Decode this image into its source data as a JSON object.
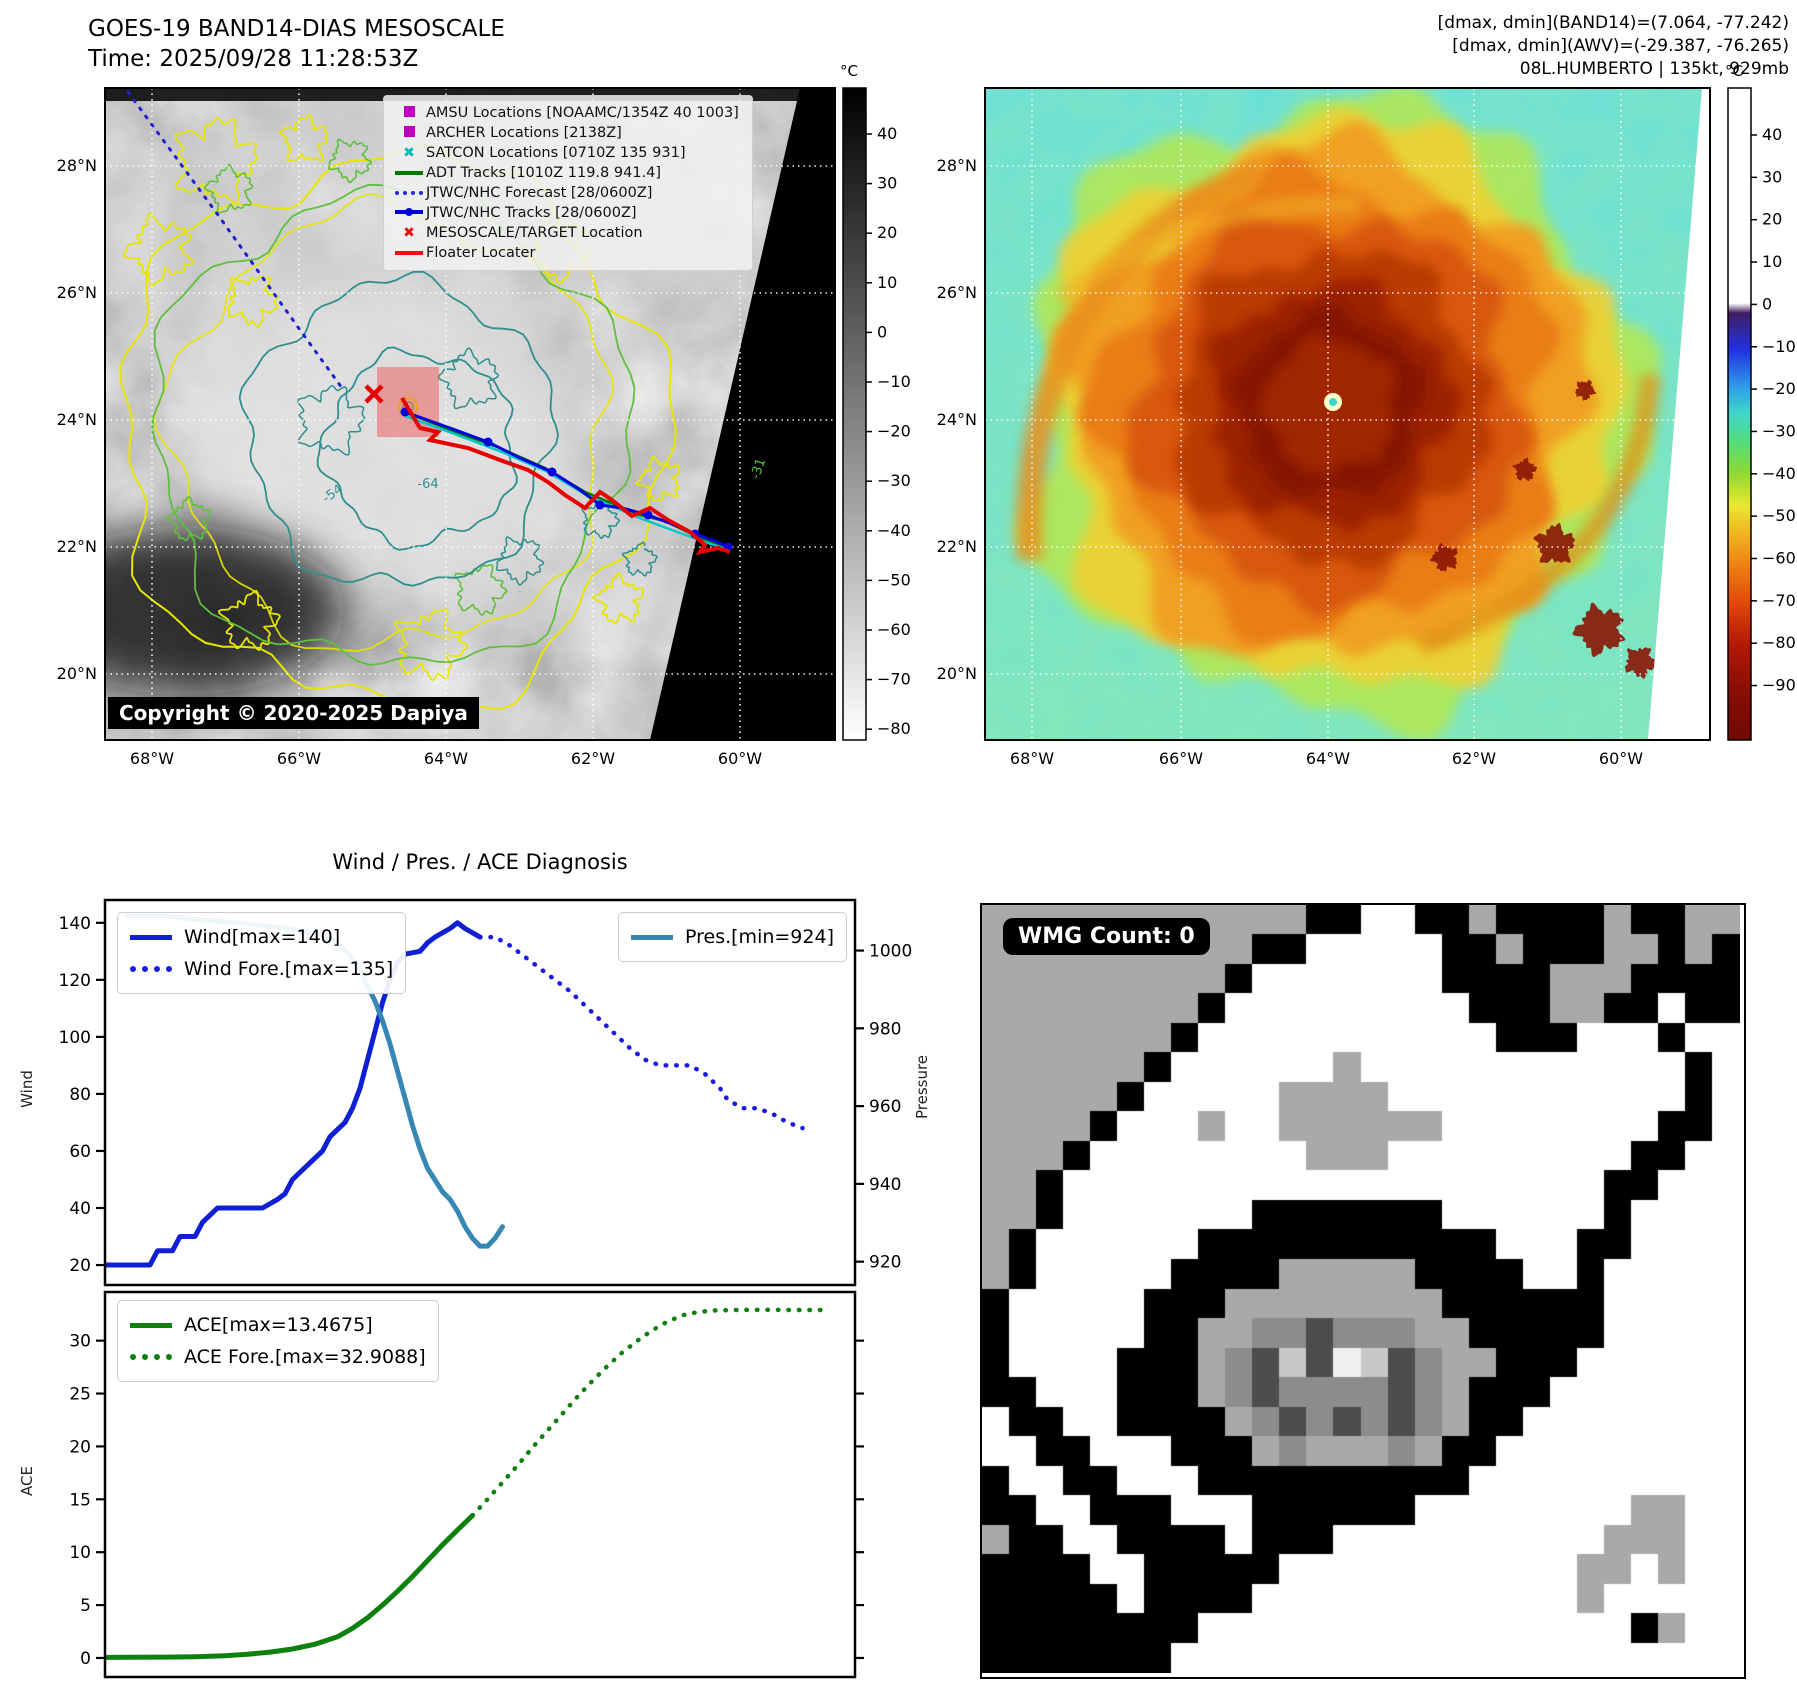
{
  "header": {
    "title_line1": "GOES-19 BAND14-DIAS MESOSCALE",
    "title_line2": "Time: 2025/09/28 11:28:53Z",
    "stats_line1": "[dmax, dmin](BAND14)=(7.064, -77.242)",
    "stats_line2": "[dmax, dmin](AWV)=(-29.387, -76.265)",
    "stats_line3": "08L.HUMBERTO | 135kt, 929mb"
  },
  "band14_map": {
    "lat_labels": [
      "28°N",
      "26°N",
      "24°N",
      "22°N",
      "20°N"
    ],
    "lon_labels": [
      "68°W",
      "66°W",
      "64°W",
      "62°W",
      "60°W"
    ],
    "colorbar": {
      "title": "°C",
      "ticks": [
        40,
        30,
        20,
        10,
        0,
        -10,
        -20,
        -30,
        -40,
        -50,
        -60,
        -70,
        -80
      ]
    },
    "legend": [
      {
        "label": "AMSU Locations [NOAAMC/1354Z 40 1003]",
        "marker": "square",
        "color": "#c000c0"
      },
      {
        "label": "ARCHER Locations [2138Z]",
        "marker": "square",
        "color": "#c000c0"
      },
      {
        "label": "SATCON Locations [0710Z 135 931]",
        "marker": "x",
        "color": "#00b8b8"
      },
      {
        "label": "ADT Tracks [1010Z 119.8 941.4]",
        "marker": "line",
        "color": "#007800"
      },
      {
        "label": "JTWC/NHC Forecast [28/0600Z]",
        "marker": "dotted",
        "color": "#2828e0"
      },
      {
        "label": "JTWC/NHC Tracks [28/0600Z]",
        "marker": "line-dot",
        "color": "#0000dd"
      },
      {
        "label": "MESOSCALE/TARGET Location",
        "marker": "x",
        "color": "#e81010"
      },
      {
        "label": "Floater Locater",
        "marker": "line",
        "color": "#e81010"
      }
    ],
    "contour_labels": [
      "-54",
      "-64",
      "-31"
    ],
    "copyright": "Copyright © 2020-2025 Dapiya"
  },
  "ir_map": {
    "lat_labels": [
      "28°N",
      "26°N",
      "24°N",
      "22°N",
      "20°N"
    ],
    "lon_labels": [
      "68°W",
      "66°W",
      "64°W",
      "62°W",
      "60°W"
    ],
    "colorbar": {
      "title": "°C",
      "ticks": [
        40,
        30,
        20,
        10,
        0,
        -10,
        -20,
        -30,
        -40,
        -50,
        -60,
        -70,
        -80,
        -90
      ]
    }
  },
  "diagnosis": {
    "title": "Wind / Pres. / ACE Diagnosis",
    "wind_axis_label": "Wind",
    "pressure_axis_label": "Pressure",
    "ace_axis_label": "ACE"
  },
  "wmg": {
    "count_label": "WMG Count: 0",
    "palette": {
      "g": "#a9a9a9",
      "w": "#ffffff",
      "b": "#000000",
      "d": "#4d4d4d",
      "m": "#8c8c8c",
      "l": "#c8c8c8",
      "e": "#efefef"
    },
    "grid": [
      "ggggggggggggbbwwbbgbbbbgbbgg",
      "ggggggggggbbwwwwwbbgbbbggbgb",
      "gggggggggbwwwwwwwbbbbgggbbbb",
      "ggggggggbwwwwwwwwwbbbggbbwbb",
      "gggggggbwwwwwwwwwwwbbbwwwbww",
      "ggggggbwwwwwwgwwwwwwwwwwwwbw",
      "gggggbwwwwwggggwwwwwwwwwwwbw",
      "ggggbwwwgwwggggggwwwwwwwwbbw",
      "gggbwwwwwwwwgggwwwwwwwwwbbww",
      "ggbwwwwwwwwwwwwwwwwwwwwbbwww",
      "ggbwwwwwwwbbbbbbbwwwwwwbwwww",
      "gbwwwwwwbbbbbbbbbbbwwwbbwwww",
      "gbwwwwwbbbbgggggbbbbwwbwwwww",
      "bwwwwwbbbggggggggbbbbbbwwwww",
      "bwwwwwbbggmmdmmmggbbbbbwwwww",
      "bwwwwbbbgmdldeldmggbbbwwwwww",
      "bbwwwbbbgmdmmmmdmgbbbwwwwwww",
      "wbbwwbbbbgmdmdmdmgbbwwwwwwww",
      "wwbbwwwbbbgmgggmgbbwwwwwwwww",
      "bwwbbwwwbbbbbbbbbbwwwwwwwwww",
      "bbwwbbbwwwbbbbbbwwwwwwwwggww",
      "gbbwwbbbbwbbbwwwwwwwwwwgggww",
      "bbbbwwbbbbbwwwwwwwwwwwggwgww",
      "bbbbbwbbbbwwwwwwwwwwwwgwwwww",
      "bbbbbbbbwwwwwwwwwwwwwwwwbgww",
      "bbbbbbbwwwwwwwwwwwwwwwwwwwww"
    ]
  },
  "chart_data": [
    {
      "type": "line",
      "title": "Wind / Pres. / ACE Diagnosis",
      "ylabel": "Wind",
      "ylabel_right": "Pressure",
      "xlim": [
        0,
        100
      ],
      "ylim": [
        13,
        148
      ],
      "ylim_right": [
        914,
        1013
      ],
      "yticks": [
        20,
        40,
        60,
        80,
        100,
        120,
        140
      ],
      "yticks_right": [
        920,
        940,
        960,
        980,
        1000
      ],
      "grid": false,
      "legend_position": "upper left / upper right",
      "series": [
        {
          "name": "Wind[max=140]",
          "axis": "left",
          "style": "solid",
          "color": "#0f1fd4",
          "points": [
            [
              0,
              20
            ],
            [
              6,
              20
            ],
            [
              7,
              25
            ],
            [
              9,
              25
            ],
            [
              10,
              30
            ],
            [
              12,
              30
            ],
            [
              13,
              35
            ],
            [
              15,
              40
            ],
            [
              21,
              40
            ],
            [
              23,
              43
            ],
            [
              24,
              45
            ],
            [
              25,
              50
            ],
            [
              27,
              55
            ],
            [
              29,
              60
            ],
            [
              30,
              65
            ],
            [
              32,
              70
            ],
            [
              33,
              75
            ],
            [
              34,
              82
            ],
            [
              35,
              92
            ],
            [
              36,
              102
            ],
            [
              37,
              112
            ],
            [
              38,
              120
            ],
            [
              39,
              126
            ],
            [
              40,
              129
            ],
            [
              42,
              130
            ],
            [
              43,
              133
            ],
            [
              44,
              135
            ],
            [
              46,
              138
            ],
            [
              47,
              140
            ],
            [
              48,
              138
            ],
            [
              50,
              135
            ]
          ]
        },
        {
          "name": "Wind Fore.[max=135]",
          "axis": "left",
          "style": "dotted",
          "color": "#1a1ae6",
          "points": [
            [
              50,
              135
            ],
            [
              52,
              135
            ],
            [
              54,
              132
            ],
            [
              56,
              128
            ],
            [
              58,
              124
            ],
            [
              60,
              120
            ],
            [
              62,
              116
            ],
            [
              64,
              111
            ],
            [
              66,
              106
            ],
            [
              68,
              101
            ],
            [
              70,
              96
            ],
            [
              72,
              92
            ],
            [
              74,
              90
            ],
            [
              76,
              90
            ],
            [
              78,
              90
            ],
            [
              80,
              87
            ],
            [
              82,
              82
            ],
            [
              83,
              78
            ],
            [
              85,
              75
            ],
            [
              87,
              75
            ],
            [
              89,
              73
            ],
            [
              91,
              70
            ],
            [
              93,
              68
            ]
          ]
        },
        {
          "name": "Pres.[min=924]",
          "axis": "right",
          "style": "solid",
          "color": "#3787b4",
          "points": [
            [
              3,
              1009
            ],
            [
              8,
              1009
            ],
            [
              12,
              1008
            ],
            [
              18,
              1007
            ],
            [
              23,
              1006
            ],
            [
              26,
              1005
            ],
            [
              29,
              1004
            ],
            [
              31,
              1002
            ],
            [
              32,
              1000
            ],
            [
              33,
              998
            ],
            [
              34,
              995
            ],
            [
              35,
              991
            ],
            [
              36,
              987
            ],
            [
              37,
              982
            ],
            [
              38,
              976
            ],
            [
              39,
              969
            ],
            [
              40,
              962
            ],
            [
              41,
              955
            ],
            [
              42,
              949
            ],
            [
              43,
              944
            ],
            [
              44,
              941
            ],
            [
              45,
              938
            ],
            [
              46,
              936
            ],
            [
              47,
              933
            ],
            [
              48,
              929
            ],
            [
              49,
              926
            ],
            [
              50,
              924
            ],
            [
              51,
              924
            ],
            [
              52,
              926
            ],
            [
              53,
              929
            ]
          ]
        }
      ]
    },
    {
      "type": "line",
      "ylabel": "ACE",
      "xlim": [
        0,
        100
      ],
      "ylim": [
        -1.8,
        34.6
      ],
      "yticks": [
        0,
        5,
        10,
        15,
        20,
        25,
        30
      ],
      "grid": false,
      "series": [
        {
          "name": "ACE[max=13.4675]",
          "axis": "left",
          "style": "solid",
          "color": "#0e800e",
          "points": [
            [
              0,
              0.05
            ],
            [
              8,
              0.08
            ],
            [
              12,
              0.12
            ],
            [
              16,
              0.2
            ],
            [
              19,
              0.35
            ],
            [
              22,
              0.55
            ],
            [
              25,
              0.85
            ],
            [
              28,
              1.3
            ],
            [
              31,
              2.0
            ],
            [
              33,
              2.8
            ],
            [
              35,
              3.8
            ],
            [
              37,
              5.0
            ],
            [
              39,
              6.3
            ],
            [
              41,
              7.7
            ],
            [
              43,
              9.2
            ],
            [
              45,
              10.7
            ],
            [
              47,
              12.1
            ],
            [
              49,
              13.47
            ]
          ]
        },
        {
          "name": "ACE Fore.[max=32.9088]",
          "axis": "left",
          "style": "dotted",
          "color": "#0e800e",
          "points": [
            [
              49,
              13.47
            ],
            [
              51,
              15.0
            ],
            [
              53,
              16.6
            ],
            [
              55,
              18.2
            ],
            [
              57,
              19.9
            ],
            [
              59,
              21.5
            ],
            [
              61,
              23.1
            ],
            [
              63,
              24.7
            ],
            [
              65,
              26.2
            ],
            [
              67,
              27.6
            ],
            [
              69,
              28.9
            ],
            [
              71,
              30.0
            ],
            [
              73,
              31.0
            ],
            [
              75,
              31.8
            ],
            [
              77,
              32.4
            ],
            [
              79,
              32.7
            ],
            [
              81,
              32.85
            ],
            [
              84,
              32.9
            ],
            [
              88,
              32.92
            ],
            [
              92,
              32.9
            ],
            [
              96,
              32.9
            ]
          ]
        }
      ]
    }
  ]
}
